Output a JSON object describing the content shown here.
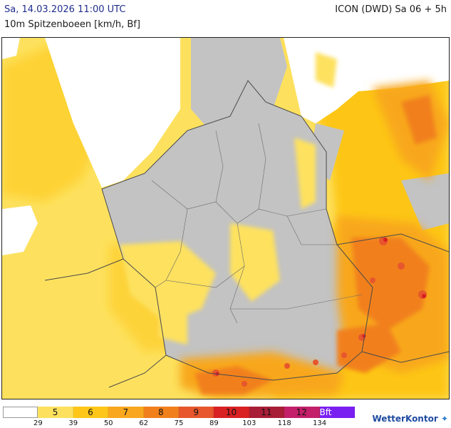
{
  "header": {
    "date": "Sa, 14.03.2026 11:00 UTC",
    "parameter": "10m Spitzenboeen [km/h, Bf]",
    "model": "ICON (DWD) Sa 06 + 5h"
  },
  "legend": {
    "cells": [
      {
        "label": "",
        "color": "#ffffff"
      },
      {
        "label": "5",
        "color": "#fde15e"
      },
      {
        "label": "6",
        "color": "#fdc619"
      },
      {
        "label": "7",
        "color": "#f8a71f"
      },
      {
        "label": "8",
        "color": "#f1801c"
      },
      {
        "label": "9",
        "color": "#e7562c"
      },
      {
        "label": "10",
        "color": "#d92023"
      },
      {
        "label": "11",
        "color": "#a81e36"
      },
      {
        "label": "12",
        "color": "#c31f6a"
      },
      {
        "label": "Bft",
        "color": "#7a1ff2"
      }
    ],
    "ticks": [
      "29",
      "39",
      "50",
      "62",
      "75",
      "89",
      "103",
      "118",
      "134"
    ]
  },
  "brand": {
    "name": "WetterKontor",
    "logo_glyph": "✦"
  },
  "colors": {
    "land_gray": "#c3c3c3",
    "sea_white": "#ffffff",
    "border": "#4a4a4a"
  }
}
